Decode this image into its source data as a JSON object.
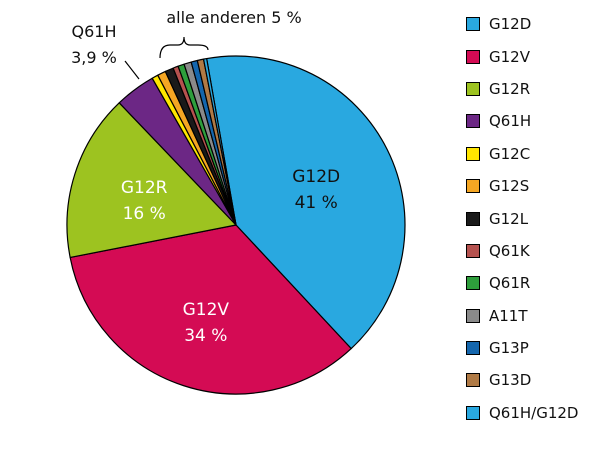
{
  "chart_data": {
    "type": "pie",
    "slices": [
      {
        "name": "G12D",
        "value": 41,
        "color": "#29a8e0"
      },
      {
        "name": "G12V",
        "value": 34,
        "color": "#d40b54"
      },
      {
        "name": "G12R",
        "value": 16,
        "color": "#9dc320"
      },
      {
        "name": "Q61H",
        "value": 3.9,
        "color": "#6c2785"
      },
      {
        "name": "G12C",
        "value": 0.6,
        "color": "#ffe600"
      },
      {
        "name": "G12S",
        "value": 0.8,
        "color": "#f5a623"
      },
      {
        "name": "G12L",
        "value": 0.8,
        "color": "#1a1a1a"
      },
      {
        "name": "Q61K",
        "value": 0.5,
        "color": "#b5524f"
      },
      {
        "name": "Q61R",
        "value": 0.6,
        "color": "#2e9e3c"
      },
      {
        "name": "A11T",
        "value": 0.7,
        "color": "#8a8a8a"
      },
      {
        "name": "G13P",
        "value": 0.6,
        "color": "#1466ad"
      },
      {
        "name": "G13D",
        "value": 0.6,
        "color": "#b07a45"
      },
      {
        "name": "Q61H/G12D",
        "value": 0.3,
        "color": "#29a8e0"
      }
    ],
    "slice_labels": [
      {
        "slice": "G12D",
        "name": "G12D",
        "value": "41 %"
      },
      {
        "slice": "G12V",
        "name": "G12V",
        "value": "34 %"
      },
      {
        "slice": "G12R",
        "name": "G12R",
        "value": "16 %"
      }
    ],
    "annotations": {
      "q61h_name": "Q61H",
      "q61h_value": "3,9 %",
      "others": "alle anderen 5 %"
    },
    "legend": [
      "G12D",
      "G12V",
      "G12R",
      "Q61H",
      "G12C",
      "G12S",
      "G12L",
      "Q61K",
      "Q61R",
      "A11T",
      "G13P",
      "G13D",
      "Q61H/G12D"
    ],
    "legend_placement": "right"
  }
}
